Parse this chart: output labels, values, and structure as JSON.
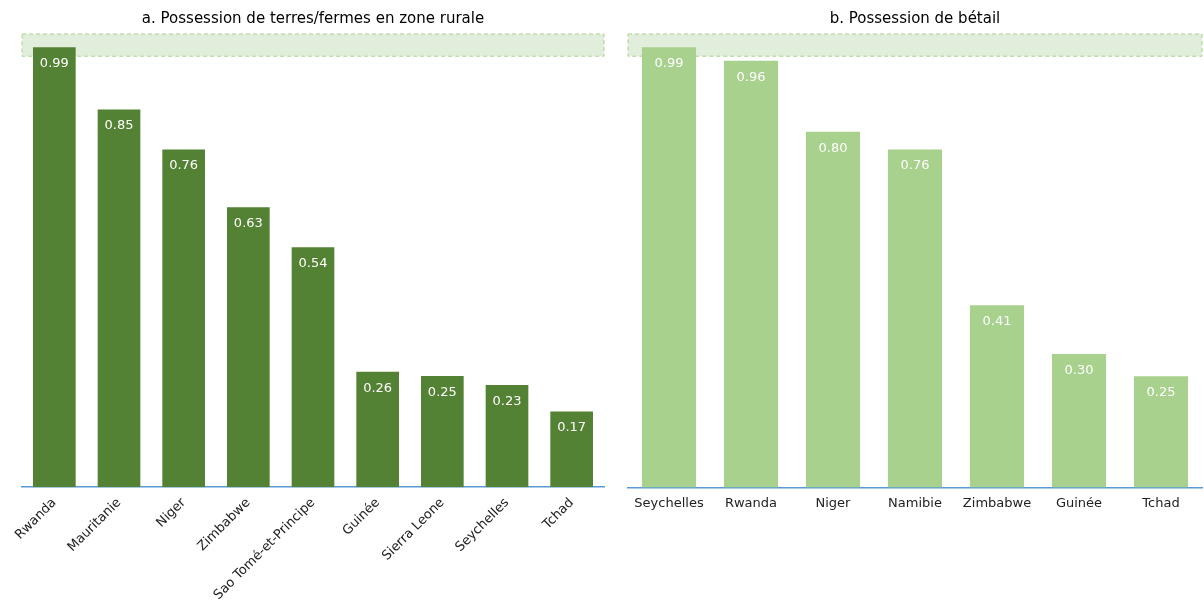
{
  "chart_data": [
    {
      "type": "bar",
      "title": "a. Possession de terres/fermes en zone rurale",
      "categories": [
        "Rwanda",
        "Mauritanie",
        "Niger",
        "Zimbabwe",
        "Sao Tomé-et-Principe",
        "Guinée",
        "Sierra Leone",
        "Seychelles",
        "Tchad"
      ],
      "values": [
        0.99,
        0.85,
        0.76,
        0.63,
        0.54,
        0.26,
        0.25,
        0.23,
        0.17
      ],
      "color": "#548235",
      "value_labels": [
        "0.99",
        "0.85",
        "0.76",
        "0.63",
        "0.54",
        "0.26",
        "0.25",
        "0.23",
        "0.17"
      ],
      "grid": false,
      "legend": false,
      "tick_labels": "x",
      "bands": [
        {
          "axis": "y",
          "from": 0.97,
          "to": 1.02,
          "color": "#d9ead3"
        }
      ]
    },
    {
      "type": "bar",
      "title": "b. Possession de bétail",
      "categories": [
        "Seychelles",
        "Rwanda",
        "Niger",
        "Namibie",
        "Zimbabwe",
        "Guinée",
        "Tchad"
      ],
      "values": [
        0.99,
        0.96,
        0.8,
        0.76,
        0.41,
        0.3,
        0.25
      ],
      "color": "#a9d18e",
      "value_labels": [
        "0.99",
        "0.96",
        "0.80",
        "0.76",
        "0.41",
        "0.30",
        "0.25"
      ],
      "grid": false,
      "legend": false,
      "tick_labels": "x",
      "bands": [
        {
          "axis": "y",
          "from": 0.97,
          "to": 1.02,
          "color": "#d9ead3"
        }
      ]
    }
  ]
}
